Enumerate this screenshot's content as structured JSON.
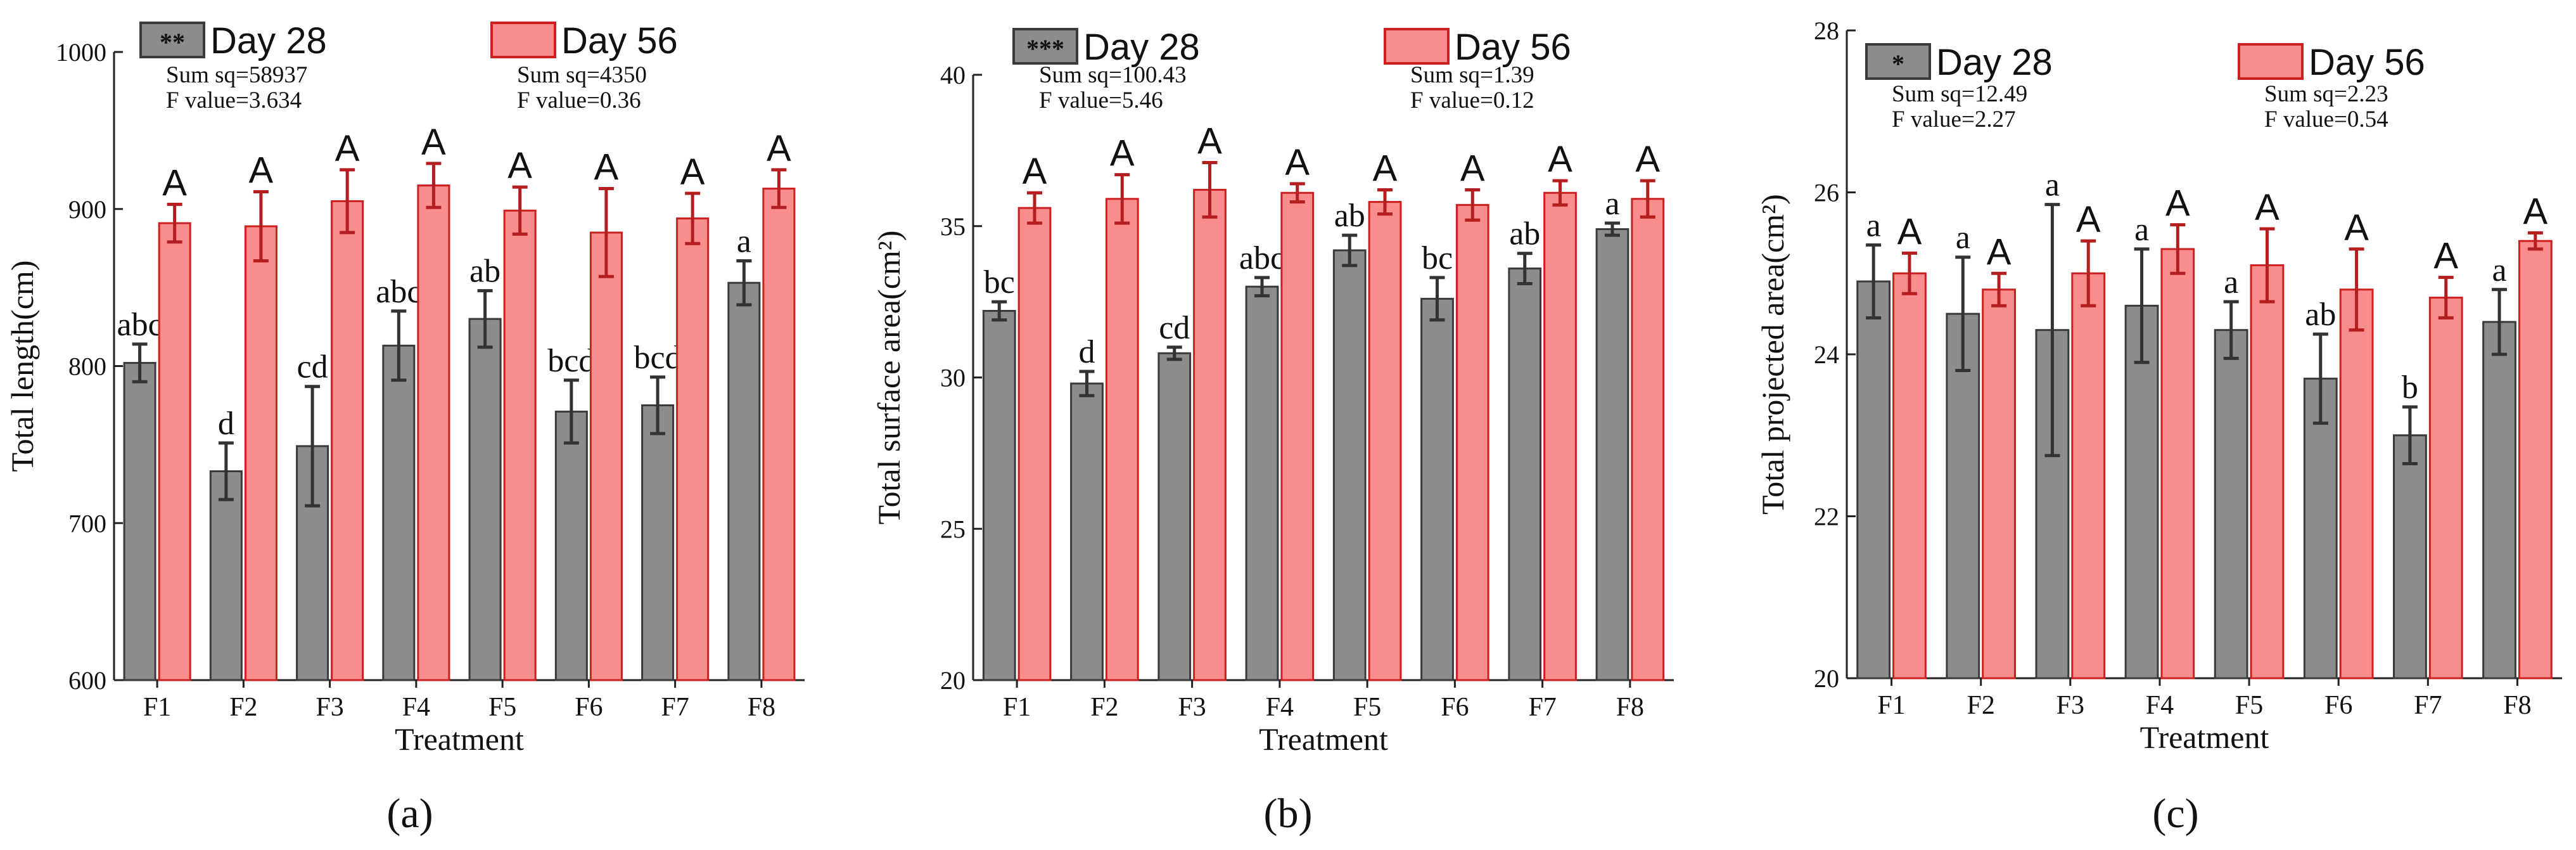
{
  "colors": {
    "day28_fill": "#8c8c8c",
    "day28_border": "#3a3a3a",
    "day56_fill": "#f98c8c",
    "day56_border": "#cc2020",
    "err28": "#333333",
    "err56": "#b51e1e",
    "axis": "#222222"
  },
  "chart_data": [
    {
      "type": "bar",
      "panel_label": "(a)",
      "xlabel": "Treatment",
      "ylabel": "Total length(cm)",
      "ylim": [
        600,
        1000
      ],
      "yticks": [
        600,
        700,
        800,
        900,
        1000
      ],
      "categories": [
        "F1",
        "F2",
        "F3",
        "F4",
        "F5",
        "F6",
        "F7",
        "F8"
      ],
      "legend": [
        {
          "name": "Day 28",
          "marker": "**",
          "sum_sq": "Sum sq=58937",
          "f_value": "F value=3.634"
        },
        {
          "name": "Day 56",
          "marker": "",
          "sum_sq": "Sum sq=4350",
          "f_value": "F value=0.36"
        }
      ],
      "series": [
        {
          "name": "Day 28",
          "values": [
            802,
            733,
            749,
            813,
            830,
            771,
            775,
            853
          ],
          "errors": [
            12,
            18,
            38,
            22,
            18,
            20,
            18,
            14
          ],
          "letters": [
            "abc",
            "d",
            "cd",
            "abc",
            "ab",
            "bcd",
            "bcd",
            "a"
          ]
        },
        {
          "name": "Day 56",
          "values": [
            891,
            889,
            905,
            915,
            899,
            885,
            894,
            913
          ],
          "errors": [
            12,
            22,
            20,
            14,
            15,
            28,
            16,
            12
          ],
          "letters": [
            "A",
            "A",
            "A",
            "A",
            "A",
            "A",
            "A",
            "A"
          ]
        }
      ]
    },
    {
      "type": "bar",
      "panel_label": "(b)",
      "xlabel": "Treatment",
      "ylabel": "Total surface area(cm²)",
      "ylim": [
        20,
        40
      ],
      "yticks": [
        20,
        25,
        30,
        35,
        40
      ],
      "categories": [
        "F1",
        "F2",
        "F3",
        "F4",
        "F5",
        "F6",
        "F7",
        "F8"
      ],
      "legend": [
        {
          "name": "Day 28",
          "marker": "***",
          "sum_sq": "Sum sq=100.43",
          "f_value": "F value=5.46"
        },
        {
          "name": "Day 56",
          "marker": "",
          "sum_sq": "Sum sq=1.39",
          "f_value": "F value=0.12"
        }
      ],
      "series": [
        {
          "name": "Day 28",
          "values": [
            32.2,
            29.8,
            30.8,
            33.0,
            34.2,
            32.6,
            33.6,
            34.9
          ],
          "errors": [
            0.3,
            0.4,
            0.2,
            0.3,
            0.5,
            0.7,
            0.5,
            0.2
          ],
          "letters": [
            "bc",
            "d",
            "cd",
            "abc",
            "ab",
            "bc",
            "ab",
            "a"
          ]
        },
        {
          "name": "Day 56",
          "values": [
            35.6,
            35.9,
            36.2,
            36.1,
            35.8,
            35.7,
            36.1,
            35.9
          ],
          "errors": [
            0.5,
            0.8,
            0.9,
            0.3,
            0.4,
            0.5,
            0.4,
            0.6
          ],
          "letters": [
            "A",
            "A",
            "A",
            "A",
            "A",
            "A",
            "A",
            "A"
          ]
        }
      ]
    },
    {
      "type": "bar",
      "panel_label": "(c)",
      "xlabel": "Treatment",
      "ylabel": "Total projected area(cm²)",
      "ylim": [
        20,
        28
      ],
      "yticks": [
        20,
        22,
        24,
        26,
        28
      ],
      "categories": [
        "F1",
        "F2",
        "F3",
        "F4",
        "F5",
        "F6",
        "F7",
        "F8"
      ],
      "legend": [
        {
          "name": "Day 28",
          "marker": "*",
          "sum_sq": "Sum sq=12.49",
          "f_value": "F value=2.27"
        },
        {
          "name": "Day 56",
          "marker": "",
          "sum_sq": "Sum sq=2.23",
          "f_value": "F value=0.54"
        }
      ],
      "series": [
        {
          "name": "Day 28",
          "values": [
            24.9,
            24.5,
            24.3,
            24.6,
            24.3,
            23.7,
            23.0,
            24.4
          ],
          "errors": [
            0.45,
            0.7,
            1.55,
            0.7,
            0.35,
            0.55,
            0.35,
            0.4
          ],
          "letters": [
            "a",
            "a",
            "a",
            "a",
            "a",
            "ab",
            "b",
            "a"
          ]
        },
        {
          "name": "Day 56",
          "values": [
            25.0,
            24.8,
            25.0,
            25.3,
            25.1,
            24.8,
            24.7,
            25.4
          ],
          "errors": [
            0.25,
            0.2,
            0.4,
            0.3,
            0.45,
            0.5,
            0.25,
            0.1
          ],
          "letters": [
            "A",
            "A",
            "A",
            "A",
            "A",
            "A",
            "A",
            "A"
          ]
        }
      ]
    }
  ]
}
